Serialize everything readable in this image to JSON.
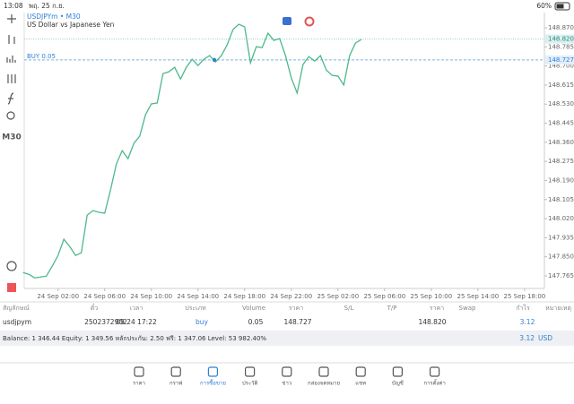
{
  "status_bar": {
    "time": "13:08",
    "date": "พฤ. 25 ก.ย.",
    "battery": "60%"
  },
  "toolbar": {
    "timeframe": "M30"
  },
  "chart_data": {
    "type": "line",
    "title": "USDJPYm • M30",
    "subtitle": "US Dollar vs Japanese Yen",
    "color": "#4cb98a",
    "x": [
      -1,
      -0.5,
      0,
      0.5,
      1,
      1.5,
      2,
      2.5,
      3,
      3.5,
      4,
      4.5,
      5,
      5.5,
      6,
      6.5,
      7,
      7.5,
      8,
      8.5,
      9,
      9.5,
      10,
      10.5,
      11,
      11.5,
      12,
      12.5,
      13,
      13.5,
      14,
      14.5,
      15,
      15.5,
      16,
      16.5,
      17,
      17.5,
      18,
      18.5,
      19,
      19.5,
      20,
      20.5,
      21,
      21.5,
      22,
      22.5,
      23,
      23.5,
      24,
      24.5,
      25,
      25.5,
      26,
      26.5,
      27,
      27.5,
      28
    ],
    "values": [
      147.78,
      147.772,
      147.756,
      147.76,
      147.764,
      147.808,
      147.856,
      147.928,
      147.896,
      147.856,
      147.868,
      148.036,
      148.056,
      148.048,
      148.044,
      148.148,
      148.263,
      148.323,
      148.287,
      148.355,
      148.387,
      148.483,
      148.531,
      148.535,
      148.666,
      148.674,
      148.694,
      148.642,
      148.694,
      148.73,
      148.702,
      148.73,
      148.746,
      148.718,
      148.746,
      148.794,
      148.862,
      148.886,
      148.874,
      148.714,
      148.786,
      148.782,
      148.846,
      148.814,
      148.822,
      148.746,
      148.647,
      148.579,
      148.706,
      148.742,
      148.722,
      148.746,
      148.682,
      148.658,
      148.655,
      148.615,
      148.746,
      148.802,
      148.818
    ],
    "xlim": [
      -0.9,
      43.7
    ],
    "ylim": [
      147.709,
      148.938
    ],
    "xticks": [
      {
        "value": 2,
        "label": "24 Sep 02:00"
      },
      {
        "value": 6,
        "label": "24 Sep 06:00"
      },
      {
        "value": 10,
        "label": "24 Sep 10:00"
      },
      {
        "value": 14,
        "label": "24 Sep 14:00"
      },
      {
        "value": 18,
        "label": "24 Sep 18:00"
      },
      {
        "value": 22,
        "label": "24 Sep 22:00"
      },
      {
        "value": 26,
        "label": "25 Sep 02:00"
      },
      {
        "value": 30,
        "label": "25 Sep 06:00"
      },
      {
        "value": 34,
        "label": "25 Sep 10:00"
      },
      {
        "value": 38,
        "label": "25 Sep 14:00"
      },
      {
        "value": 42,
        "label": "25 Sep 18:00"
      }
    ],
    "yticks": [
      {
        "value": 148.87,
        "label": "148.870"
      },
      {
        "value": 148.785,
        "label": "148.785"
      },
      {
        "value": 148.7,
        "label": "148.700"
      },
      {
        "value": 148.615,
        "label": "148.615"
      },
      {
        "value": 148.53,
        "label": "148.530"
      },
      {
        "value": 148.445,
        "label": "148.445"
      },
      {
        "value": 148.36,
        "label": "148.360"
      },
      {
        "value": 148.275,
        "label": "148.275"
      },
      {
        "value": 148.19,
        "label": "148.190"
      },
      {
        "value": 148.105,
        "label": "148.105"
      },
      {
        "value": 148.02,
        "label": "148.020"
      },
      {
        "value": 147.935,
        "label": "147.935"
      },
      {
        "value": 147.85,
        "label": "147.850"
      },
      {
        "value": 147.765,
        "label": "147.765"
      }
    ],
    "bid": 148.82,
    "bid_label": "148.820",
    "buy_price": 148.727,
    "buy_price_label": "148.727",
    "buy_label": "BUY 0.05"
  },
  "table": {
    "columns": [
      "สัญลักษณ์",
      "ตั๋ว",
      "เวลา",
      "ประเภท",
      "Volume",
      "ราคา",
      "S/L",
      "T/P",
      "ราคา",
      "Swap",
      "กำไร",
      "หมายเหตุ"
    ],
    "row": {
      "symbol": "usdjpym",
      "ticket": "2502372902",
      "time": "09.24 17:22",
      "type": "buy",
      "volume": "0.05",
      "price": "148.727",
      "current_price": "148.820",
      "profit": "3.12"
    }
  },
  "summary": {
    "text": "Balance: 1 346.44 Equity: 1 349.56 หลักประกัน: 2.50 ฟรี: 1 347.06 Level: 53 982.40%",
    "profit": "3.12",
    "currency": "USD"
  },
  "nav": [
    "ราคา",
    "กราฟ",
    "การซื้อขาย",
    "ประวัติ",
    "ข่าว",
    "กล่องจดหมาย",
    "แชท",
    "บัญชี",
    "การตั้งค่า"
  ]
}
